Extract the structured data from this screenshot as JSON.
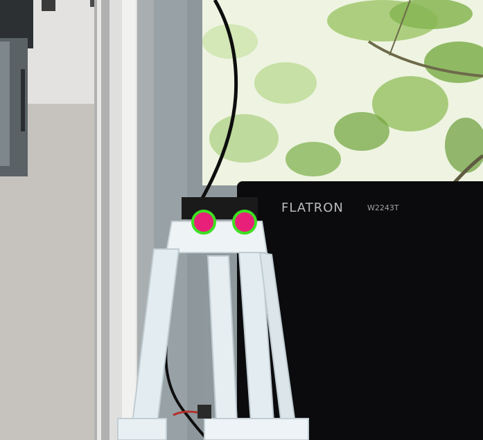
{
  "monitor": {
    "brand": "FLATRON",
    "model": "W2243T"
  },
  "markers": {
    "fill_color": "#e8207a",
    "ring_color": "#3de022",
    "count": 2
  },
  "colors": {
    "monitor_body": "#0b0b0d",
    "tripod_plastic": "#e6eef2",
    "foliage_light": "#e9f1d8",
    "foliage_dark": "#7fb04a"
  }
}
